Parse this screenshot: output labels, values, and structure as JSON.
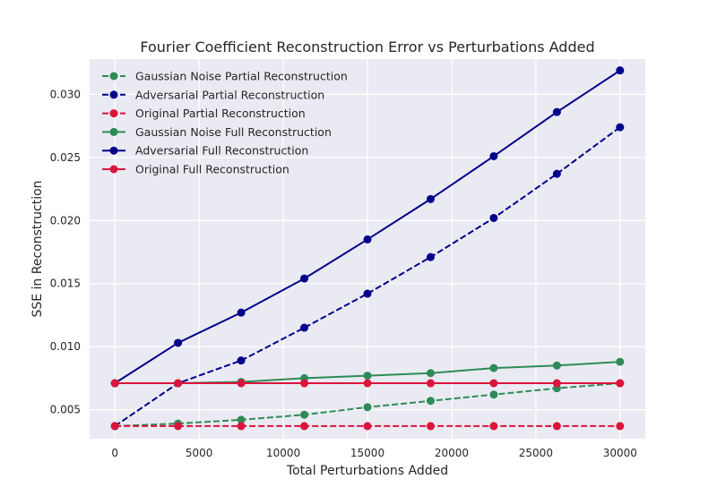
{
  "chart_data": {
    "type": "line",
    "title": "Fourier Coefficient Reconstruction Error vs Perturbations Added",
    "xlabel": "Total Perturbations Added",
    "ylabel": "SSE in Reconstruction",
    "xlim": [
      -1500,
      31500
    ],
    "ylim": [
      0.0027,
      0.0328
    ],
    "xticks": [
      0,
      5000,
      10000,
      15000,
      20000,
      25000,
      30000
    ],
    "xtick_labels": [
      "0",
      "5000",
      "10000",
      "15000",
      "20000",
      "25000",
      "30000"
    ],
    "yticks": [
      0.005,
      0.01,
      0.015,
      0.02,
      0.025,
      0.03
    ],
    "ytick_labels": [
      "0.005",
      "0.010",
      "0.015",
      "0.020",
      "0.025",
      "0.030"
    ],
    "grid": true,
    "legend_position": "top-left",
    "x": [
      0,
      3750,
      7500,
      11250,
      15000,
      18750,
      22500,
      26250,
      30000
    ],
    "series": [
      {
        "name": "Gaussian Noise Partial Reconstruction",
        "color": "#2e8b57",
        "dash": "dashed",
        "marker": "circle",
        "values": [
          0.0037,
          0.0039,
          0.0042,
          0.0046,
          0.0052,
          0.0057,
          0.0062,
          0.0067,
          0.0071
        ]
      },
      {
        "name": "Adversarial Partial Reconstruction",
        "color": "#00008b",
        "dash": "dashed",
        "marker": "circle",
        "values": [
          0.0037,
          0.0071,
          0.0089,
          0.0115,
          0.0142,
          0.0171,
          0.0202,
          0.0237,
          0.0274
        ]
      },
      {
        "name": "Original Partial Reconstruction",
        "color": "#dc143c",
        "dash": "dashed",
        "marker": "circle",
        "values": [
          0.0037,
          0.0037,
          0.0037,
          0.0037,
          0.0037,
          0.0037,
          0.0037,
          0.0037,
          0.0037
        ]
      },
      {
        "name": "Gaussian Noise Full Reconstruction",
        "color": "#2e8b57",
        "dash": "solid",
        "marker": "circle",
        "values": [
          0.0071,
          0.0071,
          0.0072,
          0.0075,
          0.0077,
          0.0079,
          0.0083,
          0.0085,
          0.0088
        ]
      },
      {
        "name": "Adversarial Full Reconstruction",
        "color": "#00008b",
        "dash": "solid",
        "marker": "circle",
        "values": [
          0.0071,
          0.0103,
          0.0127,
          0.0154,
          0.0185,
          0.0217,
          0.0251,
          0.0286,
          0.0319
        ]
      },
      {
        "name": "Original Full Reconstruction",
        "color": "#dc143c",
        "dash": "solid",
        "marker": "circle",
        "values": [
          0.0071,
          0.0071,
          0.0071,
          0.0071,
          0.0071,
          0.0071,
          0.0071,
          0.0071,
          0.0071
        ]
      }
    ]
  }
}
